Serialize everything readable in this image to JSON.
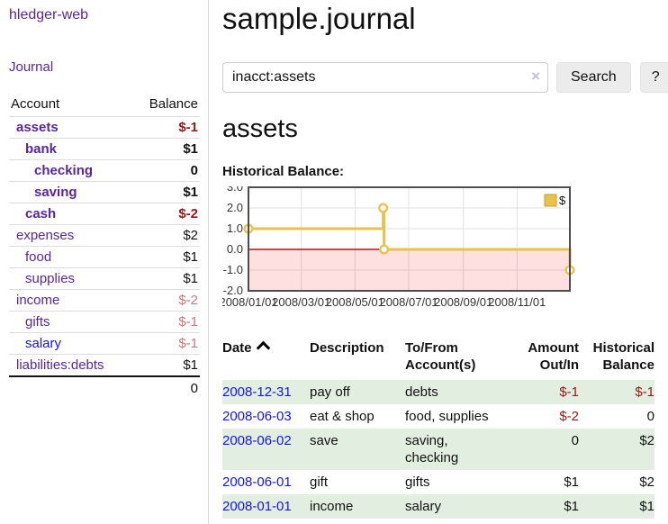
{
  "app": {
    "title": "hledger-web",
    "nav_journal": "Journal"
  },
  "sidebar": {
    "accounts_header": {
      "account": "Account",
      "balance": "Balance"
    },
    "accounts": [
      {
        "name": "assets",
        "indent": 0,
        "bold": true,
        "balance": "$-1",
        "balance_style": "negative"
      },
      {
        "name": "bank",
        "indent": 1,
        "bold": true,
        "balance": "$1",
        "balance_style": "normal"
      },
      {
        "name": "checking",
        "indent": 2,
        "bold": true,
        "balance": "0",
        "balance_style": "normal"
      },
      {
        "name": "saving",
        "indent": 2,
        "bold": true,
        "balance": "$1",
        "balance_style": "normal"
      },
      {
        "name": "cash",
        "indent": 1,
        "bold": true,
        "balance": "$-2",
        "balance_style": "negative"
      },
      {
        "name": "expenses",
        "indent": 0,
        "bold": false,
        "balance": "$2",
        "balance_style": "normal"
      },
      {
        "name": "food",
        "indent": 1,
        "bold": false,
        "balance": "$1",
        "balance_style": "normal"
      },
      {
        "name": "supplies",
        "indent": 1,
        "bold": false,
        "balance": "$1",
        "balance_style": "normal"
      },
      {
        "name": "income",
        "indent": 0,
        "bold": false,
        "balance": "$-2",
        "balance_style": "negative-light"
      },
      {
        "name": "gifts",
        "indent": 1,
        "bold": false,
        "balance": "$-1",
        "balance_style": "negative-light"
      },
      {
        "name": "salary",
        "indent": 1,
        "bold": false,
        "link_style": "unvisited",
        "balance": "$-1",
        "balance_style": "negative-light"
      },
      {
        "name": "liabilities:debts",
        "indent": 0,
        "bold": false,
        "balance": "$1",
        "balance_style": "normal"
      }
    ],
    "total": "0"
  },
  "main": {
    "title": "sample.journal",
    "search": {
      "value": "inacct:assets",
      "clear_icon": "×",
      "button": "Search",
      "help_button": "?"
    },
    "account_heading": "assets",
    "chart_label": "Historical Balance:"
  },
  "chart_data": {
    "type": "line",
    "title": "Historical Balance",
    "step": true,
    "series": [
      {
        "name": "$",
        "color": "#e8c24a",
        "points": [
          {
            "date": "2008/01/01",
            "value": 1
          },
          {
            "date": "2008/06/02",
            "value": 2
          },
          {
            "date": "2008/06/03",
            "value": 0
          },
          {
            "date": "2008/12/31",
            "value": -1
          }
        ]
      }
    ],
    "xrange": [
      "2008/01/01",
      "2008/12/31"
    ],
    "ylim": [
      -2,
      3
    ],
    "yticks": [
      3.0,
      2.0,
      1.0,
      0.0,
      -1.0,
      -2.0
    ],
    "ytick_labels": [
      "3.0",
      "2.0",
      "1.0",
      "0.0",
      "-1.0",
      "-2.0"
    ],
    "xticks": [
      "2008/01/01",
      "2008/03/01",
      "2008/05/01",
      "2008/07/01",
      "2008/09/01",
      "2008/11/01"
    ],
    "legend": {
      "label": "$",
      "position": "top-right"
    },
    "grid": true,
    "gridline_color": "#e0e0e0",
    "negative_region_color": "rgba(255,0,0,0.12)",
    "zero_line_color": "#aa1616",
    "border_color": "#4d4d4d",
    "marker": {
      "fill": "#ffffff",
      "stroke": "#e8c24a"
    }
  },
  "register_table": {
    "headers": [
      {
        "lines": [
          "Date"
        ],
        "sorted_asc": true,
        "align": "left"
      },
      {
        "lines": [
          "Description"
        ],
        "align": "left"
      },
      {
        "lines": [
          "To/From",
          "Account(s)"
        ],
        "align": "left"
      },
      {
        "lines": [
          "Amount",
          "Out/In"
        ],
        "align": "right"
      },
      {
        "lines": [
          "Historical",
          "Balance"
        ],
        "align": "right"
      }
    ],
    "rows": [
      {
        "date": "2008-12-31",
        "description": "pay off",
        "accounts": "debts",
        "amount": "$-1",
        "amount_negative": true,
        "balance": "$-1",
        "balance_negative": true,
        "striped": true
      },
      {
        "date": "2008-06-03",
        "description": "eat & shop",
        "accounts": "food, supplies",
        "amount": "$-2",
        "amount_negative": true,
        "balance": "0",
        "balance_negative": false,
        "striped": false
      },
      {
        "date": "2008-06-02",
        "description": "save",
        "accounts": "saving,\nchecking",
        "amount": "0",
        "amount_negative": false,
        "balance": "$2",
        "balance_negative": false,
        "striped": true
      },
      {
        "date": "2008-06-01",
        "description": "gift",
        "accounts": "gifts",
        "amount": "$1",
        "amount_negative": false,
        "balance": "$2",
        "balance_negative": false,
        "striped": false
      },
      {
        "date": "2008-01-01",
        "description": "income",
        "accounts": "salary",
        "amount": "$1",
        "amount_negative": false,
        "balance": "$1",
        "balance_negative": false,
        "striped": true
      }
    ]
  }
}
